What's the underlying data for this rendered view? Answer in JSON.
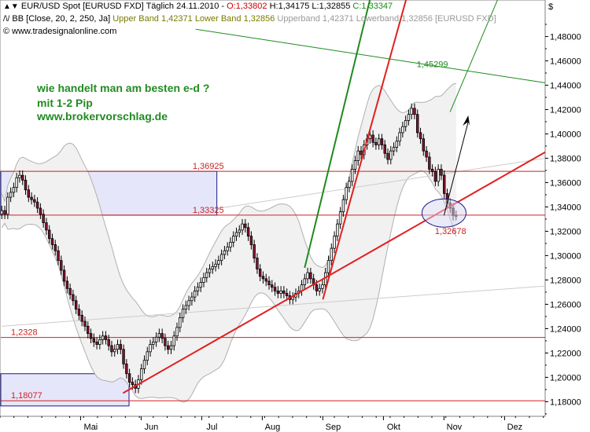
{
  "header": {
    "line1_prefix": "EUR/USD Spot [EURUSD FXD]  Täglich",
    "line1_date": "24.11.2010",
    "line1_open": "O:1,33802",
    "line1_high": "H:1,34175",
    "line1_low": "L:1,32855",
    "line1_close": "C:1,33347",
    "line2_bb": "BB [Close, 20, 2, 250, Ja]",
    "line2_upper": "Upper Band 1,42371",
    "line2_lower": "Lower Band 1,32856",
    "line2_legend": "Upperband 1,42371  Lowerband 1,32856  [EURUSD FXD]",
    "line3_copy": "© www.tradesignalonline.com"
  },
  "annotations": {
    "promo1": "wie handelt man am besten e-d ?",
    "promo2": "mit 1-2 Pip",
    "promo3": "www.brokervorschlag.de"
  },
  "colors": {
    "candle_up": "#ffffff",
    "candle_down": "#8a1330",
    "band": "#b0b0b0",
    "support": "#e02020",
    "green": "#1e8a1e",
    "box_fill": "#e6e6fa",
    "box_border": "#1a1a8a",
    "level_line": "#cc2222"
  },
  "chart_data": {
    "type": "candlestick",
    "title": "EUR/USD Spot [EURUSD FXD]",
    "ylabel": "$",
    "ylim": [
      1.168,
      1.51
    ],
    "y_ticks": [
      "1,18000",
      "1,20000",
      "1,22000",
      "1,24000",
      "1,26000",
      "1,28000",
      "1,30000",
      "1,32000",
      "1,34000",
      "1,36000",
      "1,38000",
      "1,40000",
      "1,42000",
      "1,44000",
      "1,46000",
      "1,48000"
    ],
    "months": [
      "Mai",
      "Jun",
      "Jul",
      "Aug",
      "Sep",
      "Okt",
      "Nov",
      "Dez"
    ],
    "month_positions": [
      0.0,
      1.0,
      2.0,
      3.0,
      4.0,
      5.0,
      6.0,
      7.0
    ],
    "x_range": [
      -1.33,
      7.67
    ],
    "levels": [
      {
        "label": "1,36925",
        "value": 1.36925
      },
      {
        "label": "1,33325",
        "value": 1.33325
      },
      {
        "label": "1,2328",
        "value": 1.2328
      },
      {
        "label": "1,18077",
        "value": 1.18077
      },
      {
        "label": "1,32678",
        "value": 1.32678
      },
      {
        "label": "1,45299",
        "value": 1.45299
      }
    ],
    "close": [
      1.337,
      1.334,
      1.348,
      1.352,
      1.356,
      1.364,
      1.366,
      1.362,
      1.354,
      1.348,
      1.346,
      1.344,
      1.339,
      1.334,
      1.327,
      1.321,
      1.314,
      1.309,
      1.304,
      1.296,
      1.288,
      1.279,
      1.273,
      1.268,
      1.263,
      1.256,
      1.251,
      1.246,
      1.242,
      1.236,
      1.232,
      1.229,
      1.227,
      1.231,
      1.234,
      1.231,
      1.226,
      1.221,
      1.223,
      1.227,
      1.223,
      1.211,
      1.203,
      1.196,
      1.194,
      1.191,
      1.198,
      1.207,
      1.214,
      1.221,
      1.227,
      1.229,
      1.233,
      1.236,
      1.232,
      1.226,
      1.223,
      1.226,
      1.234,
      1.241,
      1.249,
      1.256,
      1.259,
      1.263,
      1.266,
      1.271,
      1.274,
      1.278,
      1.282,
      1.286,
      1.289,
      1.291,
      1.293,
      1.296,
      1.301,
      1.304,
      1.307,
      1.311,
      1.316,
      1.319,
      1.321,
      1.326,
      1.323,
      1.316,
      1.309,
      1.298,
      1.289,
      1.283,
      1.281,
      1.279,
      1.276,
      1.274,
      1.271,
      1.269,
      1.271,
      1.269,
      1.267,
      1.264,
      1.266,
      1.269,
      1.271,
      1.276,
      1.281,
      1.286,
      1.281,
      1.276,
      1.271,
      1.273,
      1.276,
      1.286,
      1.296,
      1.306,
      1.316,
      1.326,
      1.336,
      1.346,
      1.356,
      1.361,
      1.371,
      1.378,
      1.386,
      1.383,
      1.391,
      1.396,
      1.399,
      1.393,
      1.391,
      1.396,
      1.391,
      1.384,
      1.379,
      1.386,
      1.389,
      1.394,
      1.401,
      1.406,
      1.411,
      1.416,
      1.421,
      1.416,
      1.401,
      1.396,
      1.386,
      1.381,
      1.371,
      1.369,
      1.361,
      1.371,
      1.366,
      1.351,
      1.343,
      1.339,
      1.333,
      1.333
    ],
    "annotation_texts": [
      "1,36925",
      "1,33325",
      "1,2328",
      "1,18077",
      "1,32678",
      "1,45299"
    ]
  }
}
